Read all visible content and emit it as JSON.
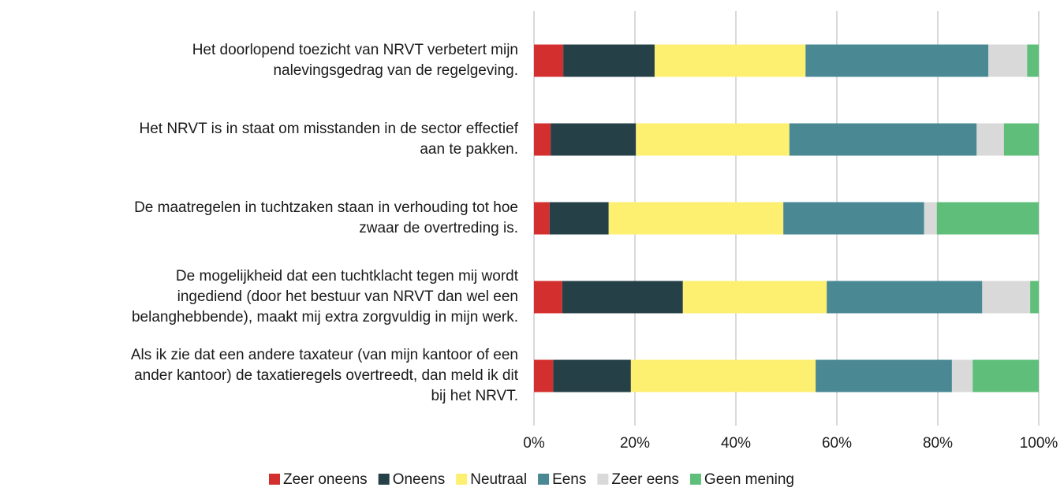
{
  "chart_data": {
    "type": "stacked-barh",
    "categories": [
      [
        "Het doorlopend toezicht van NRVT verbetert mijn",
        "nalevingsgedrag van de regelgeving."
      ],
      [
        "Het NRVT is in staat om misstanden in de sector effectief",
        "aan te pakken."
      ],
      [
        "De maatregelen in tuchtzaken staan in verhouding tot hoe",
        "zwaar de overtreding is."
      ],
      [
        "De mogelijkheid dat een tuchtklacht tegen mij wordt",
        "ingediend (door het bestuur van NRVT dan wel een",
        "belanghebbende), maakt mij extra zorgvuldig in mijn werk."
      ],
      [
        "Als ik zie dat een andere taxateur (van mijn kantoor of een",
        "ander kantoor) de taxatieregels overtreedt, dan meld ik dit",
        "bij het NRVT."
      ]
    ],
    "series": [
      {
        "name": "Zeer oneens",
        "color": "#d42f2f",
        "values": [
          5.8,
          3.3,
          3.1,
          5.6,
          3.8
        ]
      },
      {
        "name": "Oneens",
        "color": "#254047",
        "values": [
          18.1,
          16.9,
          11.7,
          23.9,
          15.4
        ]
      },
      {
        "name": "Neutraal",
        "color": "#fdef70",
        "values": [
          29.9,
          30.4,
          34.6,
          28.5,
          36.6
        ]
      },
      {
        "name": "Eens",
        "color": "#4a8894",
        "values": [
          36.2,
          37.1,
          27.9,
          30.8,
          27.0
        ]
      },
      {
        "name": "Zeer eens",
        "color": "#d9d9d9",
        "values": [
          7.7,
          5.4,
          2.5,
          9.5,
          4.1
        ]
      },
      {
        "name": "Geen mening",
        "color": "#5fbf7a",
        "values": [
          2.3,
          6.9,
          20.2,
          1.7,
          13.1
        ]
      }
    ],
    "xlim": [
      0,
      100
    ],
    "xticks": [
      {
        "value": 0,
        "label": "0%"
      },
      {
        "value": 20,
        "label": "20%"
      },
      {
        "value": 40,
        "label": "40%"
      },
      {
        "value": 60,
        "label": "60%"
      },
      {
        "value": 80,
        "label": "80%"
      },
      {
        "value": 100,
        "label": "100%"
      }
    ],
    "grid": true,
    "legend": "bottom"
  }
}
